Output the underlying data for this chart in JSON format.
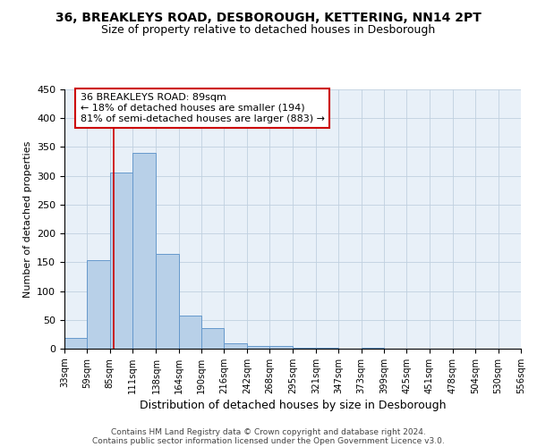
{
  "title1": "36, BREAKLEYS ROAD, DESBOROUGH, KETTERING, NN14 2PT",
  "title2": "Size of property relative to detached houses in Desborough",
  "xlabel": "Distribution of detached houses by size in Desborough",
  "ylabel": "Number of detached properties",
  "bin_labels": [
    "33sqm",
    "59sqm",
    "85sqm",
    "111sqm",
    "138sqm",
    "164sqm",
    "190sqm",
    "216sqm",
    "242sqm",
    "268sqm",
    "295sqm",
    "321sqm",
    "347sqm",
    "373sqm",
    "399sqm",
    "425sqm",
    "451sqm",
    "478sqm",
    "504sqm",
    "530sqm",
    "556sqm"
  ],
  "bin_edges": [
    33,
    59,
    85,
    111,
    138,
    164,
    190,
    216,
    242,
    268,
    295,
    321,
    347,
    373,
    399,
    425,
    451,
    478,
    504,
    530,
    556
  ],
  "bar_heights": [
    18,
    153,
    305,
    340,
    165,
    57,
    35,
    9,
    5,
    4,
    2,
    2,
    0,
    2,
    0,
    0,
    0,
    0,
    0,
    0,
    3
  ],
  "bar_color": "#b8d0e8",
  "bar_edge_color": "#6699cc",
  "red_line_x": 89,
  "annotation_line1": "36 BREAKLEYS ROAD: 89sqm",
  "annotation_line2": "← 18% of detached houses are smaller (194)",
  "annotation_line3": "81% of semi-detached houses are larger (883) →",
  "annotation_box_color": "#ffffff",
  "annotation_box_edge": "#cc0000",
  "footer1": "Contains HM Land Registry data © Crown copyright and database right 2024.",
  "footer2": "Contains public sector information licensed under the Open Government Licence v3.0.",
  "ylim": [
    0,
    450
  ],
  "yticks": [
    0,
    50,
    100,
    150,
    200,
    250,
    300,
    350,
    400,
    450
  ],
  "bg_color": "#e8f0f8"
}
